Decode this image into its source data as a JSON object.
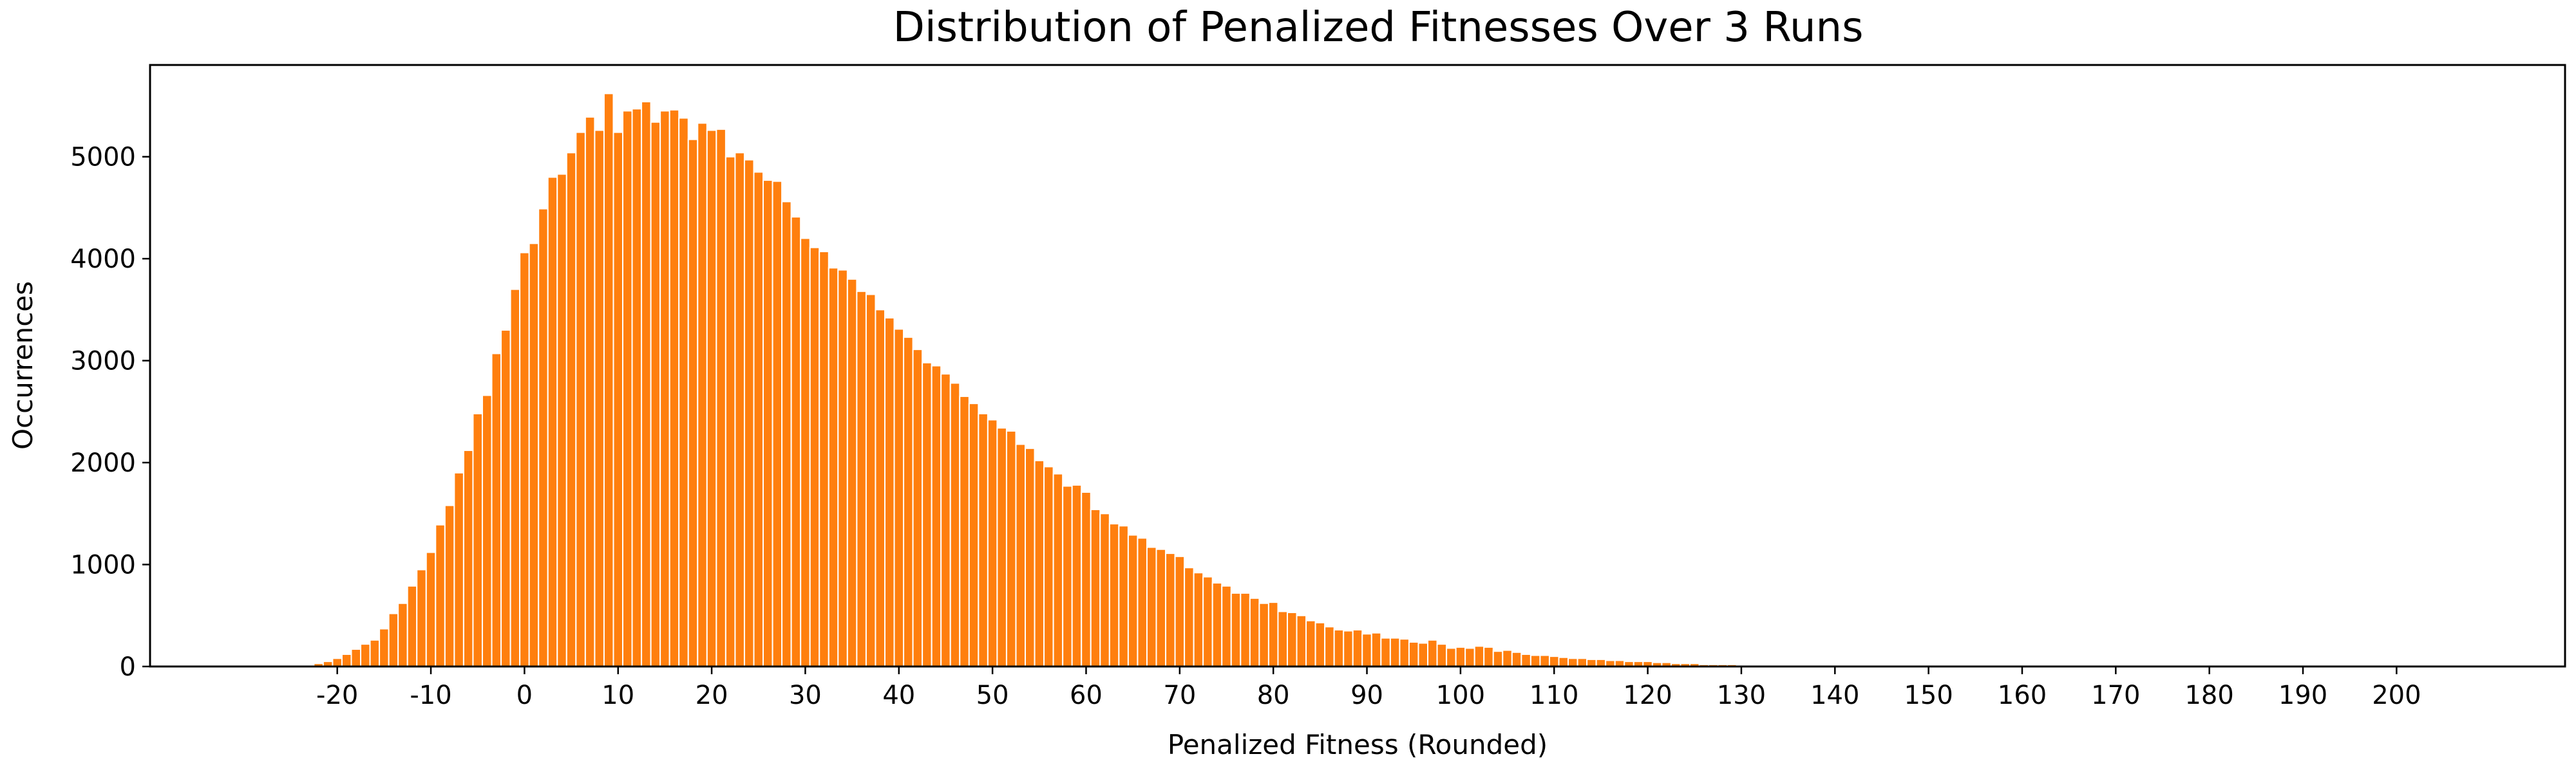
{
  "chart_data": {
    "type": "bar",
    "title": "Distribution of Penalized Fitnesses Over 3 Runs",
    "xlabel": "Penalized Fitness (Rounded)",
    "ylabel": "Occurrences",
    "x_start": -23,
    "x_step": 1,
    "values": [
      10,
      30,
      50,
      80,
      120,
      170,
      220,
      260,
      370,
      520,
      620,
      790,
      950,
      1120,
      1390,
      1580,
      1900,
      2120,
      2480,
      2660,
      3070,
      3300,
      3700,
      4060,
      4150,
      4490,
      4800,
      4830,
      5040,
      5240,
      5390,
      5260,
      5620,
      5240,
      5450,
      5470,
      5540,
      5340,
      5450,
      5460,
      5380,
      5170,
      5330,
      5260,
      5270,
      5000,
      5040,
      4970,
      4850,
      4770,
      4760,
      4560,
      4410,
      4200,
      4110,
      4070,
      3910,
      3890,
      3800,
      3680,
      3650,
      3500,
      3420,
      3310,
      3230,
      3110,
      2980,
      2950,
      2870,
      2780,
      2650,
      2580,
      2480,
      2420,
      2340,
      2310,
      2180,
      2140,
      2020,
      1960,
      1890,
      1770,
      1780,
      1710,
      1540,
      1500,
      1400,
      1380,
      1290,
      1260,
      1170,
      1150,
      1110,
      1080,
      970,
      920,
      880,
      820,
      790,
      720,
      720,
      670,
      620,
      630,
      540,
      530,
      500,
      450,
      430,
      390,
      360,
      350,
      360,
      320,
      330,
      280,
      280,
      270,
      240,
      230,
      260,
      220,
      180,
      190,
      180,
      200,
      190,
      150,
      160,
      140,
      120,
      110,
      110,
      100,
      90,
      80,
      80,
      70,
      70,
      60,
      60,
      50,
      50,
      50,
      40,
      40,
      30,
      30,
      30,
      20,
      20,
      20,
      20,
      10,
      10,
      10,
      10,
      5,
      5
    ],
    "xlim": [
      -40,
      218
    ],
    "ylim": [
      0,
      5900
    ],
    "xticks": [
      -20,
      -10,
      0,
      10,
      20,
      30,
      40,
      50,
      60,
      70,
      80,
      90,
      100,
      110,
      120,
      130,
      140,
      150,
      160,
      170,
      180,
      190,
      200
    ],
    "yticks": [
      0,
      1000,
      2000,
      3000,
      4000,
      5000
    ],
    "grid": false,
    "bar_color": "#ff7f0e",
    "bar_edge_color": "#ffffff"
  }
}
